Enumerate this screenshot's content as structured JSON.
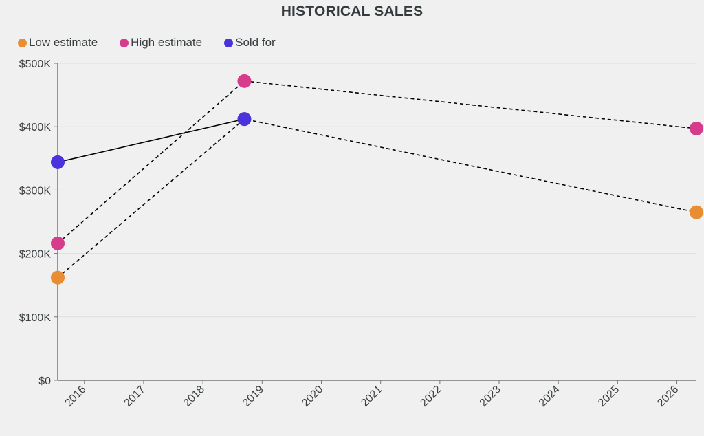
{
  "chart_data": {
    "type": "line",
    "title": "HISTORICAL SALES",
    "xlabel": "",
    "ylabel": "",
    "xlim": [
      2015.55,
      2026.33
    ],
    "ylim": [
      0,
      500000
    ],
    "grid": true,
    "legend_position": "top-left",
    "y_ticks": [
      {
        "value": 0,
        "label": "$0"
      },
      {
        "value": 100000,
        "label": "$100K"
      },
      {
        "value": 200000,
        "label": "$200K"
      },
      {
        "value": 300000,
        "label": "$300K"
      },
      {
        "value": 400000,
        "label": "$400K"
      },
      {
        "value": 500000,
        "label": "$500K"
      }
    ],
    "x_ticks": [
      {
        "value": 2016,
        "label": "2016"
      },
      {
        "value": 2017,
        "label": "2017"
      },
      {
        "value": 2018,
        "label": "2018"
      },
      {
        "value": 2019,
        "label": "2019"
      },
      {
        "value": 2020,
        "label": "2020"
      },
      {
        "value": 2021,
        "label": "2021"
      },
      {
        "value": 2022,
        "label": "2022"
      },
      {
        "value": 2023,
        "label": "2023"
      },
      {
        "value": 2024,
        "label": "2024"
      },
      {
        "value": 2025,
        "label": "2025"
      },
      {
        "value": 2026,
        "label": "2026"
      }
    ],
    "series": [
      {
        "name": "Low estimate",
        "color": "#e98d33",
        "line_style": "dashed",
        "points": [
          {
            "x": 2015.55,
            "y": 162000
          },
          {
            "x": 2018.7,
            "y": 412000
          },
          {
            "x": 2026.33,
            "y": 265000
          }
        ]
      },
      {
        "name": "High estimate",
        "color": "#d63b8c",
        "line_style": "dashed",
        "points": [
          {
            "x": 2015.55,
            "y": 216000
          },
          {
            "x": 2018.7,
            "y": 472000
          },
          {
            "x": 2026.33,
            "y": 397000
          }
        ]
      },
      {
        "name": "Sold for",
        "color": "#4a33dd",
        "line_style": "solid",
        "points": [
          {
            "x": 2015.55,
            "y": 344000
          },
          {
            "x": 2018.7,
            "y": 412000
          }
        ]
      }
    ]
  }
}
